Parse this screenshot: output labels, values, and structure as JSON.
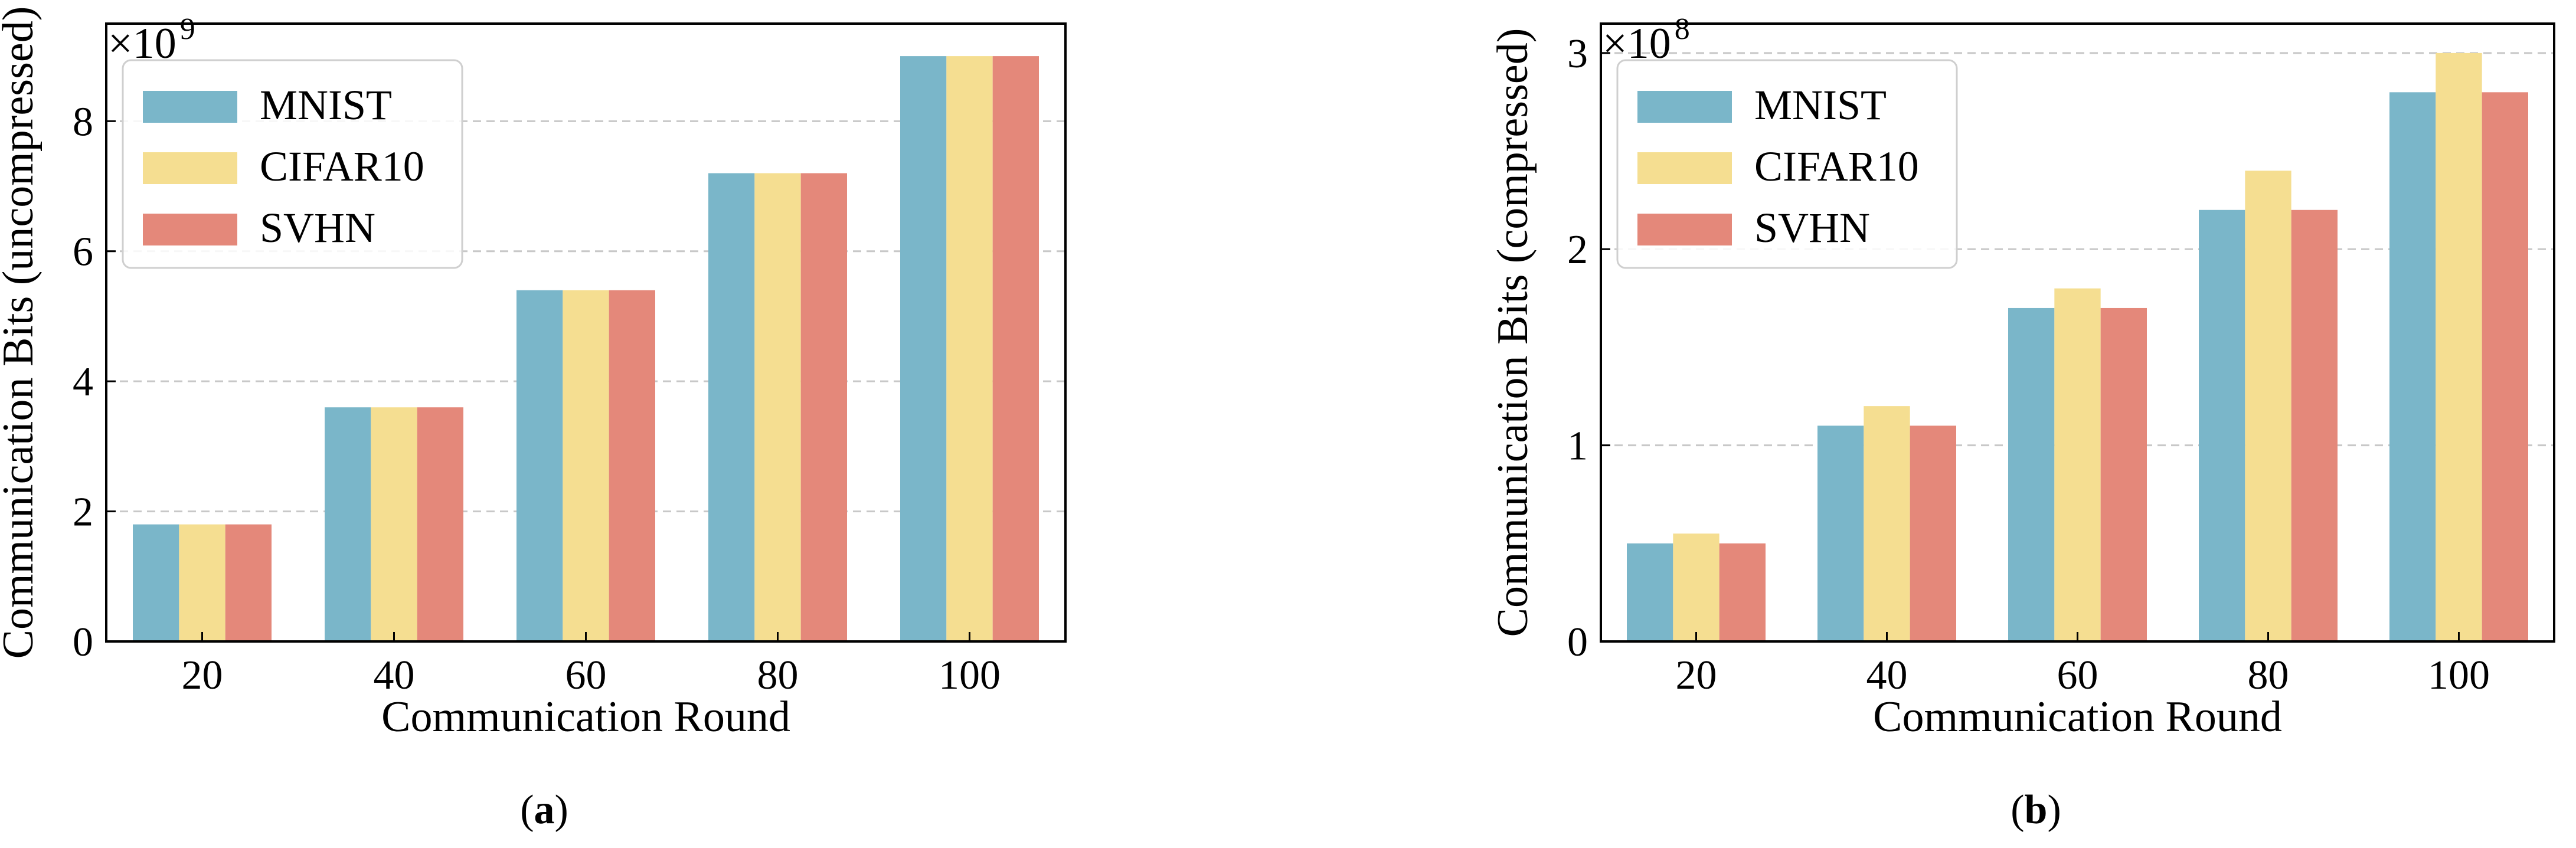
{
  "figure": {
    "captions": [
      "(a)",
      "(b)"
    ]
  },
  "chart_data": [
    {
      "type": "bar",
      "categories": [
        "20",
        "40",
        "60",
        "80",
        "100"
      ],
      "series": [
        {
          "name": "MNIST",
          "color": "#7ab6c9",
          "values": [
            1.8,
            3.6,
            5.4,
            7.2,
            9.0
          ]
        },
        {
          "name": "CIFAR10",
          "color": "#f5de91",
          "values": [
            1.8,
            3.6,
            5.4,
            7.2,
            9.0
          ]
        },
        {
          "name": "SVHN",
          "color": "#e4887a",
          "values": [
            1.8,
            3.6,
            5.4,
            7.2,
            9.0
          ]
        }
      ],
      "xlabel": "Communication Round",
      "ylabel": "Communication Bits (uncompressed)",
      "multiplier_base": "×10",
      "multiplier_exp": "9",
      "ylim": [
        0,
        9.5
      ],
      "yticks": [
        0,
        2,
        4,
        6,
        8
      ],
      "grid": "y-dashed",
      "legend": "top-left",
      "caption": "(a)"
    },
    {
      "type": "bar",
      "categories": [
        "20",
        "40",
        "60",
        "80",
        "100"
      ],
      "series": [
        {
          "name": "MNIST",
          "color": "#7ab6c9",
          "values": [
            0.5,
            1.1,
            1.7,
            2.2,
            2.8
          ]
        },
        {
          "name": "CIFAR10",
          "color": "#f5de91",
          "values": [
            0.55,
            1.2,
            1.8,
            2.4,
            3.0
          ]
        },
        {
          "name": "SVHN",
          "color": "#e4887a",
          "values": [
            0.5,
            1.1,
            1.7,
            2.2,
            2.8
          ]
        }
      ],
      "xlabel": "Communication Round",
      "ylabel": "Communication Bits (compressed)",
      "multiplier_base": "×10",
      "multiplier_exp": "8",
      "ylim": [
        0,
        3.15
      ],
      "yticks": [
        0,
        1,
        2,
        3
      ],
      "grid": "y-dashed",
      "legend": "top-left",
      "caption": "(b)"
    }
  ]
}
